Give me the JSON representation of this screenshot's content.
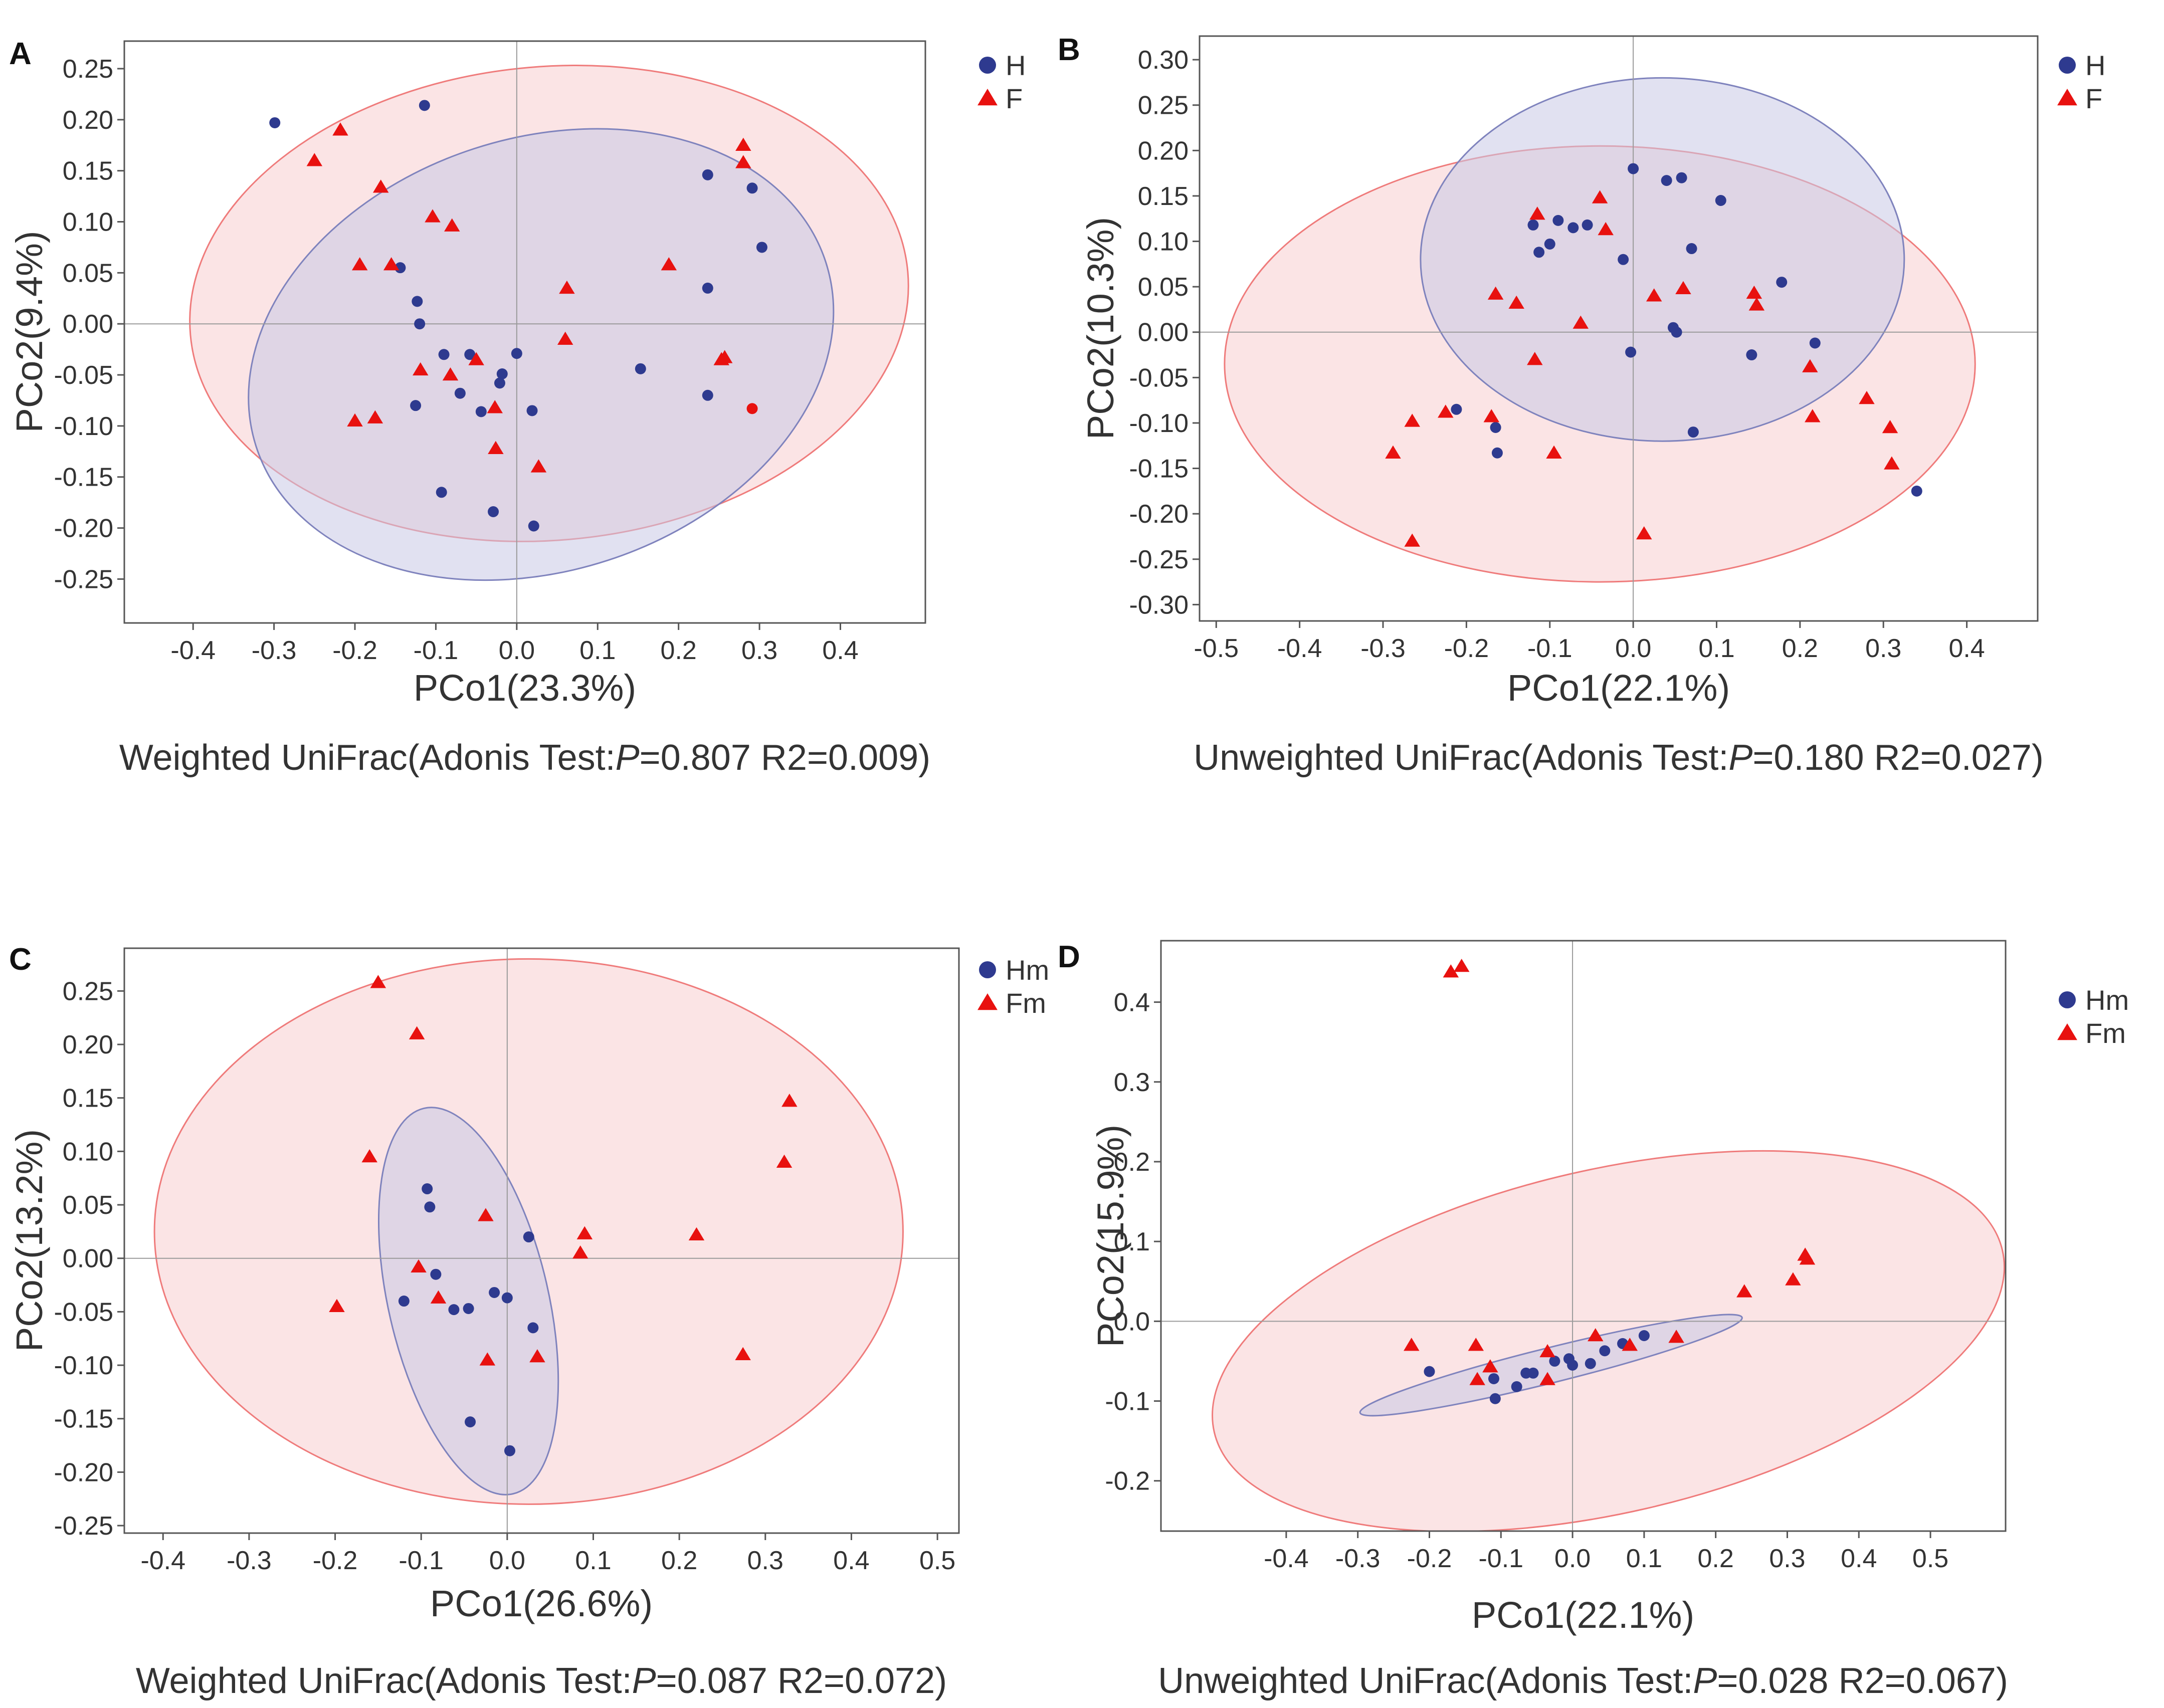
{
  "colors": {
    "group1": "#2e3a8f",
    "group2": "#e8110f",
    "ellipse1_fill": "#c8c8e6",
    "ellipse2_fill": "#f9d2d4",
    "ellipse1_stroke": "#7f83bd",
    "ellipse2_stroke": "#ef7b7b",
    "axis": "#333333",
    "text": "#333333"
  },
  "chart_data": [
    {
      "panel": "A",
      "type": "scatter",
      "xlabel": "PCo1(23.3%)",
      "ylabel": "PCo2(9.4%)",
      "caption_pre": "Weighted UniFrac(Adonis Test:",
      "caption_p": "P",
      "caption_post": "=0.807 R2=0.009)",
      "xlim": [
        -0.485,
        0.505
      ],
      "ylim": [
        -0.293,
        0.277
      ],
      "xticks": [
        -0.4,
        -0.3,
        -0.2,
        -0.1,
        0.0,
        0.1,
        0.2,
        0.3,
        0.4
      ],
      "xtick_labels": [
        "-0.4",
        "-0.3",
        "-0.2",
        "-0.1",
        "0.0",
        "0.1",
        "0.2",
        "0.3",
        "0.4"
      ],
      "yticks": [
        -0.25,
        -0.2,
        -0.15,
        -0.1,
        -0.05,
        0.0,
        0.05,
        0.1,
        0.15,
        0.2,
        0.25
      ],
      "ytick_labels": [
        "-0.25",
        "-0.20",
        "-0.15",
        "-0.10",
        "-0.05",
        "0.00",
        "0.05",
        "0.10",
        "0.15",
        "0.20",
        "0.25"
      ],
      "series": [
        {
          "name": "H",
          "marker": "circle",
          "x": [
            -0.299,
            -0.114,
            0.236,
            0.291,
            0.303,
            -0.144,
            -0.123,
            -0.12,
            0.236,
            -0.09,
            -0.058,
            -0.018,
            0.0,
            -0.021,
            -0.07,
            -0.044,
            -0.125,
            0.019,
            0.153,
            0.236,
            -0.093,
            -0.029,
            0.021
          ],
          "y": [
            0.197,
            0.214,
            0.146,
            0.133,
            0.075,
            0.055,
            0.022,
            0.0,
            0.035,
            -0.03,
            -0.03,
            -0.049,
            -0.029,
            -0.058,
            -0.068,
            -0.086,
            -0.08,
            -0.085,
            -0.044,
            -0.07,
            -0.165,
            -0.184,
            -0.198
          ]
        },
        {
          "name": "F",
          "marker": "triangle",
          "x": [
            -0.25,
            -0.218,
            -0.168,
            -0.104,
            -0.08,
            -0.194,
            -0.155,
            0.062,
            0.188,
            0.28,
            0.28,
            0.06,
            -0.119,
            -0.082,
            -0.05,
            0.257,
            0.253,
            -0.2,
            -0.175,
            -0.027,
            -0.026,
            0.027
          ],
          "y": [
            0.16,
            0.19,
            0.134,
            0.105,
            0.096,
            0.058,
            0.058,
            0.035,
            0.058,
            0.175,
            0.158,
            -0.015,
            -0.045,
            -0.05,
            -0.035,
            -0.033,
            -0.035,
            -0.095,
            -0.092,
            -0.082,
            -0.122,
            -0.14
          ]
        },
        {
          "name": "F-outlier",
          "marker": "circle-red",
          "x": [
            0.291
          ],
          "y": [
            -0.083
          ]
        }
      ],
      "legend": [
        "H",
        "F"
      ],
      "ellipses": [
        {
          "group": "H",
          "cx": 0.03,
          "cy": -0.03,
          "rx": 0.37,
          "ry": 0.212,
          "angle": -18
        },
        {
          "group": "F",
          "cx": 0.04,
          "cy": 0.02,
          "rx": 0.445,
          "ry": 0.232,
          "angle": -5
        }
      ]
    },
    {
      "panel": "B",
      "type": "scatter",
      "xlabel": "PCo1(22.1%)",
      "ylabel": "PCo2(10.3%)",
      "caption_pre": "Unweighted UniFrac(Adonis Test:",
      "caption_p": "P",
      "caption_post": "=0.180 R2=0.027)",
      "xlim": [
        -0.52,
        0.485
      ],
      "ylim": [
        -0.318,
        0.326
      ],
      "xticks": [
        -0.5,
        -0.4,
        -0.3,
        -0.2,
        -0.1,
        0.0,
        0.1,
        0.2,
        0.3,
        0.4
      ],
      "xtick_labels": [
        "-0.5",
        "-0.4",
        "-0.3",
        "-0.2",
        "-0.1",
        "0.0",
        "0.1",
        "0.2",
        "0.3",
        "0.4"
      ],
      "yticks": [
        -0.3,
        -0.25,
        -0.2,
        -0.15,
        -0.1,
        -0.05,
        0.0,
        0.05,
        0.1,
        0.15,
        0.2,
        0.25,
        0.3
      ],
      "ytick_labels": [
        "-0.30",
        "-0.25",
        "-0.20",
        "-0.15",
        "-0.10",
        "-0.05",
        "0.00",
        "0.05",
        "0.10",
        "0.15",
        "0.20",
        "0.25",
        "0.30"
      ],
      "series": [
        {
          "name": "H",
          "marker": "circle",
          "x": [
            0.0,
            0.04,
            0.058,
            0.105,
            -0.12,
            -0.09,
            -0.072,
            -0.055,
            -0.113,
            -0.1,
            -0.012,
            0.07,
            0.178,
            0.218,
            0.048,
            0.052,
            -0.003,
            0.142,
            -0.212,
            -0.165,
            -0.163,
            0.072,
            0.34
          ],
          "y": [
            0.18,
            0.167,
            0.17,
            0.145,
            0.118,
            0.123,
            0.115,
            0.118,
            0.088,
            0.097,
            0.08,
            0.092,
            0.055,
            -0.012,
            0.005,
            0.0,
            -0.022,
            -0.025,
            -0.085,
            -0.105,
            -0.133,
            -0.11,
            -0.175
          ]
        },
        {
          "name": "F",
          "marker": "triangle",
          "x": [
            -0.115,
            -0.04,
            -0.033,
            -0.165,
            -0.14,
            0.025,
            0.06,
            0.145,
            0.148,
            -0.063,
            -0.118,
            0.212,
            -0.265,
            -0.225,
            -0.17,
            0.215,
            0.28,
            0.308,
            0.31,
            -0.288,
            -0.095,
            -0.265,
            0.013
          ],
          "y": [
            0.13,
            0.148,
            0.113,
            0.042,
            0.032,
            0.04,
            0.048,
            0.043,
            0.03,
            0.01,
            -0.03,
            -0.038,
            -0.098,
            -0.088,
            -0.093,
            -0.093,
            -0.073,
            -0.105,
            -0.145,
            -0.133,
            -0.133,
            -0.23,
            -0.222
          ]
        }
      ],
      "legend": [
        "H",
        "F"
      ],
      "ellipses": [
        {
          "group": "H",
          "cx": 0.035,
          "cy": 0.08,
          "rx": 0.29,
          "ry": 0.2,
          "angle": 0
        },
        {
          "group": "F",
          "cx": -0.04,
          "cy": -0.035,
          "rx": 0.45,
          "ry": 0.24,
          "angle": 0
        }
      ]
    },
    {
      "panel": "C",
      "type": "scatter",
      "xlabel": "PCo1(26.6%)",
      "ylabel": "PCo2(13.2%)",
      "caption_pre": "Weighted UniFrac(Adonis Test:",
      "caption_p": "P",
      "caption_post": "=0.087 R2=0.072)",
      "xlim": [
        -0.445,
        0.525
      ],
      "ylim": [
        -0.257,
        0.29
      ],
      "xticks": [
        -0.4,
        -0.3,
        -0.2,
        -0.1,
        0.0,
        0.1,
        0.2,
        0.3,
        0.4,
        0.5
      ],
      "xtick_labels": [
        "-0.4",
        "-0.3",
        "-0.2",
        "-0.1",
        "0.0",
        "0.1",
        "0.2",
        "0.3",
        "0.4",
        "0.5"
      ],
      "yticks": [
        -0.25,
        -0.2,
        -0.15,
        -0.1,
        -0.05,
        0.0,
        0.05,
        0.1,
        0.15,
        0.2,
        0.25
      ],
      "ytick_labels": [
        "-0.25",
        "-0.20",
        "-0.15",
        "-0.10",
        "-0.05",
        "0.00",
        "0.05",
        "0.10",
        "0.15",
        "0.20",
        "0.25"
      ],
      "series": [
        {
          "name": "Hm",
          "marker": "circle",
          "x": [
            -0.093,
            -0.09,
            -0.083,
            0.025,
            -0.062,
            -0.12,
            -0.045,
            -0.015,
            0.0,
            0.03,
            -0.043,
            0.003
          ],
          "y": [
            0.065,
            0.048,
            -0.015,
            0.02,
            -0.048,
            -0.04,
            -0.047,
            -0.032,
            -0.037,
            -0.065,
            -0.153,
            -0.18
          ]
        },
        {
          "name": "Fm",
          "marker": "triangle",
          "x": [
            -0.15,
            -0.105,
            -0.16,
            0.328,
            0.322,
            -0.025,
            0.09,
            0.085,
            0.22,
            -0.103,
            -0.08,
            -0.198,
            -0.023,
            0.035,
            0.274
          ],
          "y": [
            0.258,
            0.21,
            0.095,
            0.147,
            0.09,
            0.04,
            0.023,
            0.005,
            0.022,
            -0.008,
            -0.037,
            -0.045,
            -0.095,
            -0.092,
            -0.09
          ]
        }
      ],
      "legend": [
        "Hm",
        "Fm"
      ],
      "ellipses": [
        {
          "group": "Hm",
          "cx": -0.045,
          "cy": -0.04,
          "rx": 0.093,
          "ry": 0.185,
          "angle": -13
        },
        {
          "group": "Fm",
          "cx": 0.025,
          "cy": 0.025,
          "rx": 0.435,
          "ry": 0.255,
          "angle": 0
        }
      ]
    },
    {
      "panel": "D",
      "type": "scatter",
      "xlabel": "PCo1(22.1%)",
      "ylabel": "PCo2(15.9%)",
      "caption_pre": "Unweighted UniFrac(Adonis Test:",
      "caption_p": "P",
      "caption_post": "=0.028 R2=0.067)",
      "xlim": [
        -0.575,
        0.605
      ],
      "ylim": [
        -0.263,
        0.477
      ],
      "xticks": [
        -0.4,
        -0.3,
        -0.2,
        -0.1,
        0.0,
        0.1,
        0.2,
        0.3,
        0.4,
        0.5
      ],
      "xtick_labels": [
        "-0.4",
        "-0.3",
        "-0.2",
        "-0.1",
        "0.0",
        "0.1",
        "0.2",
        "0.3",
        "0.4",
        "0.5"
      ],
      "yticks": [
        -0.2,
        -0.1,
        0.0,
        0.1,
        0.2,
        0.3,
        0.4
      ],
      "ytick_labels": [
        "-0.2",
        "-0.1",
        "0.0",
        "0.1",
        "0.2",
        "0.3",
        "0.4"
      ],
      "series": [
        {
          "name": "Hm",
          "marker": "circle",
          "x": [
            -0.2,
            -0.11,
            -0.108,
            -0.065,
            -0.055,
            -0.078,
            -0.005,
            0.0,
            0.025,
            0.045,
            0.07,
            0.1,
            -0.025
          ],
          "y": [
            -0.063,
            -0.072,
            -0.097,
            -0.065,
            -0.065,
            -0.082,
            -0.047,
            -0.055,
            -0.053,
            -0.037,
            -0.028,
            -0.018,
            -0.05
          ]
        },
        {
          "name": "Fm",
          "marker": "triangle",
          "x": [
            -0.17,
            -0.155,
            0.325,
            0.328,
            0.308,
            0.24,
            -0.225,
            -0.135,
            -0.115,
            -0.133,
            -0.035,
            0.032,
            0.08,
            0.145,
            -0.035
          ],
          "y": [
            0.438,
            0.445,
            0.083,
            0.078,
            0.052,
            0.037,
            -0.03,
            -0.03,
            -0.057,
            -0.073,
            -0.038,
            -0.018,
            -0.03,
            -0.02,
            -0.073
          ]
        }
      ],
      "legend": [
        "Hm",
        "Fm"
      ],
      "ellipses": [
        {
          "group": "Hm",
          "cx": -0.03,
          "cy": -0.055,
          "rx": 0.275,
          "ry": 0.022,
          "angle": -14
        },
        {
          "group": "Fm",
          "cx": 0.05,
          "cy": -0.025,
          "rx": 0.565,
          "ry": 0.215,
          "angle": -13
        }
      ]
    }
  ]
}
